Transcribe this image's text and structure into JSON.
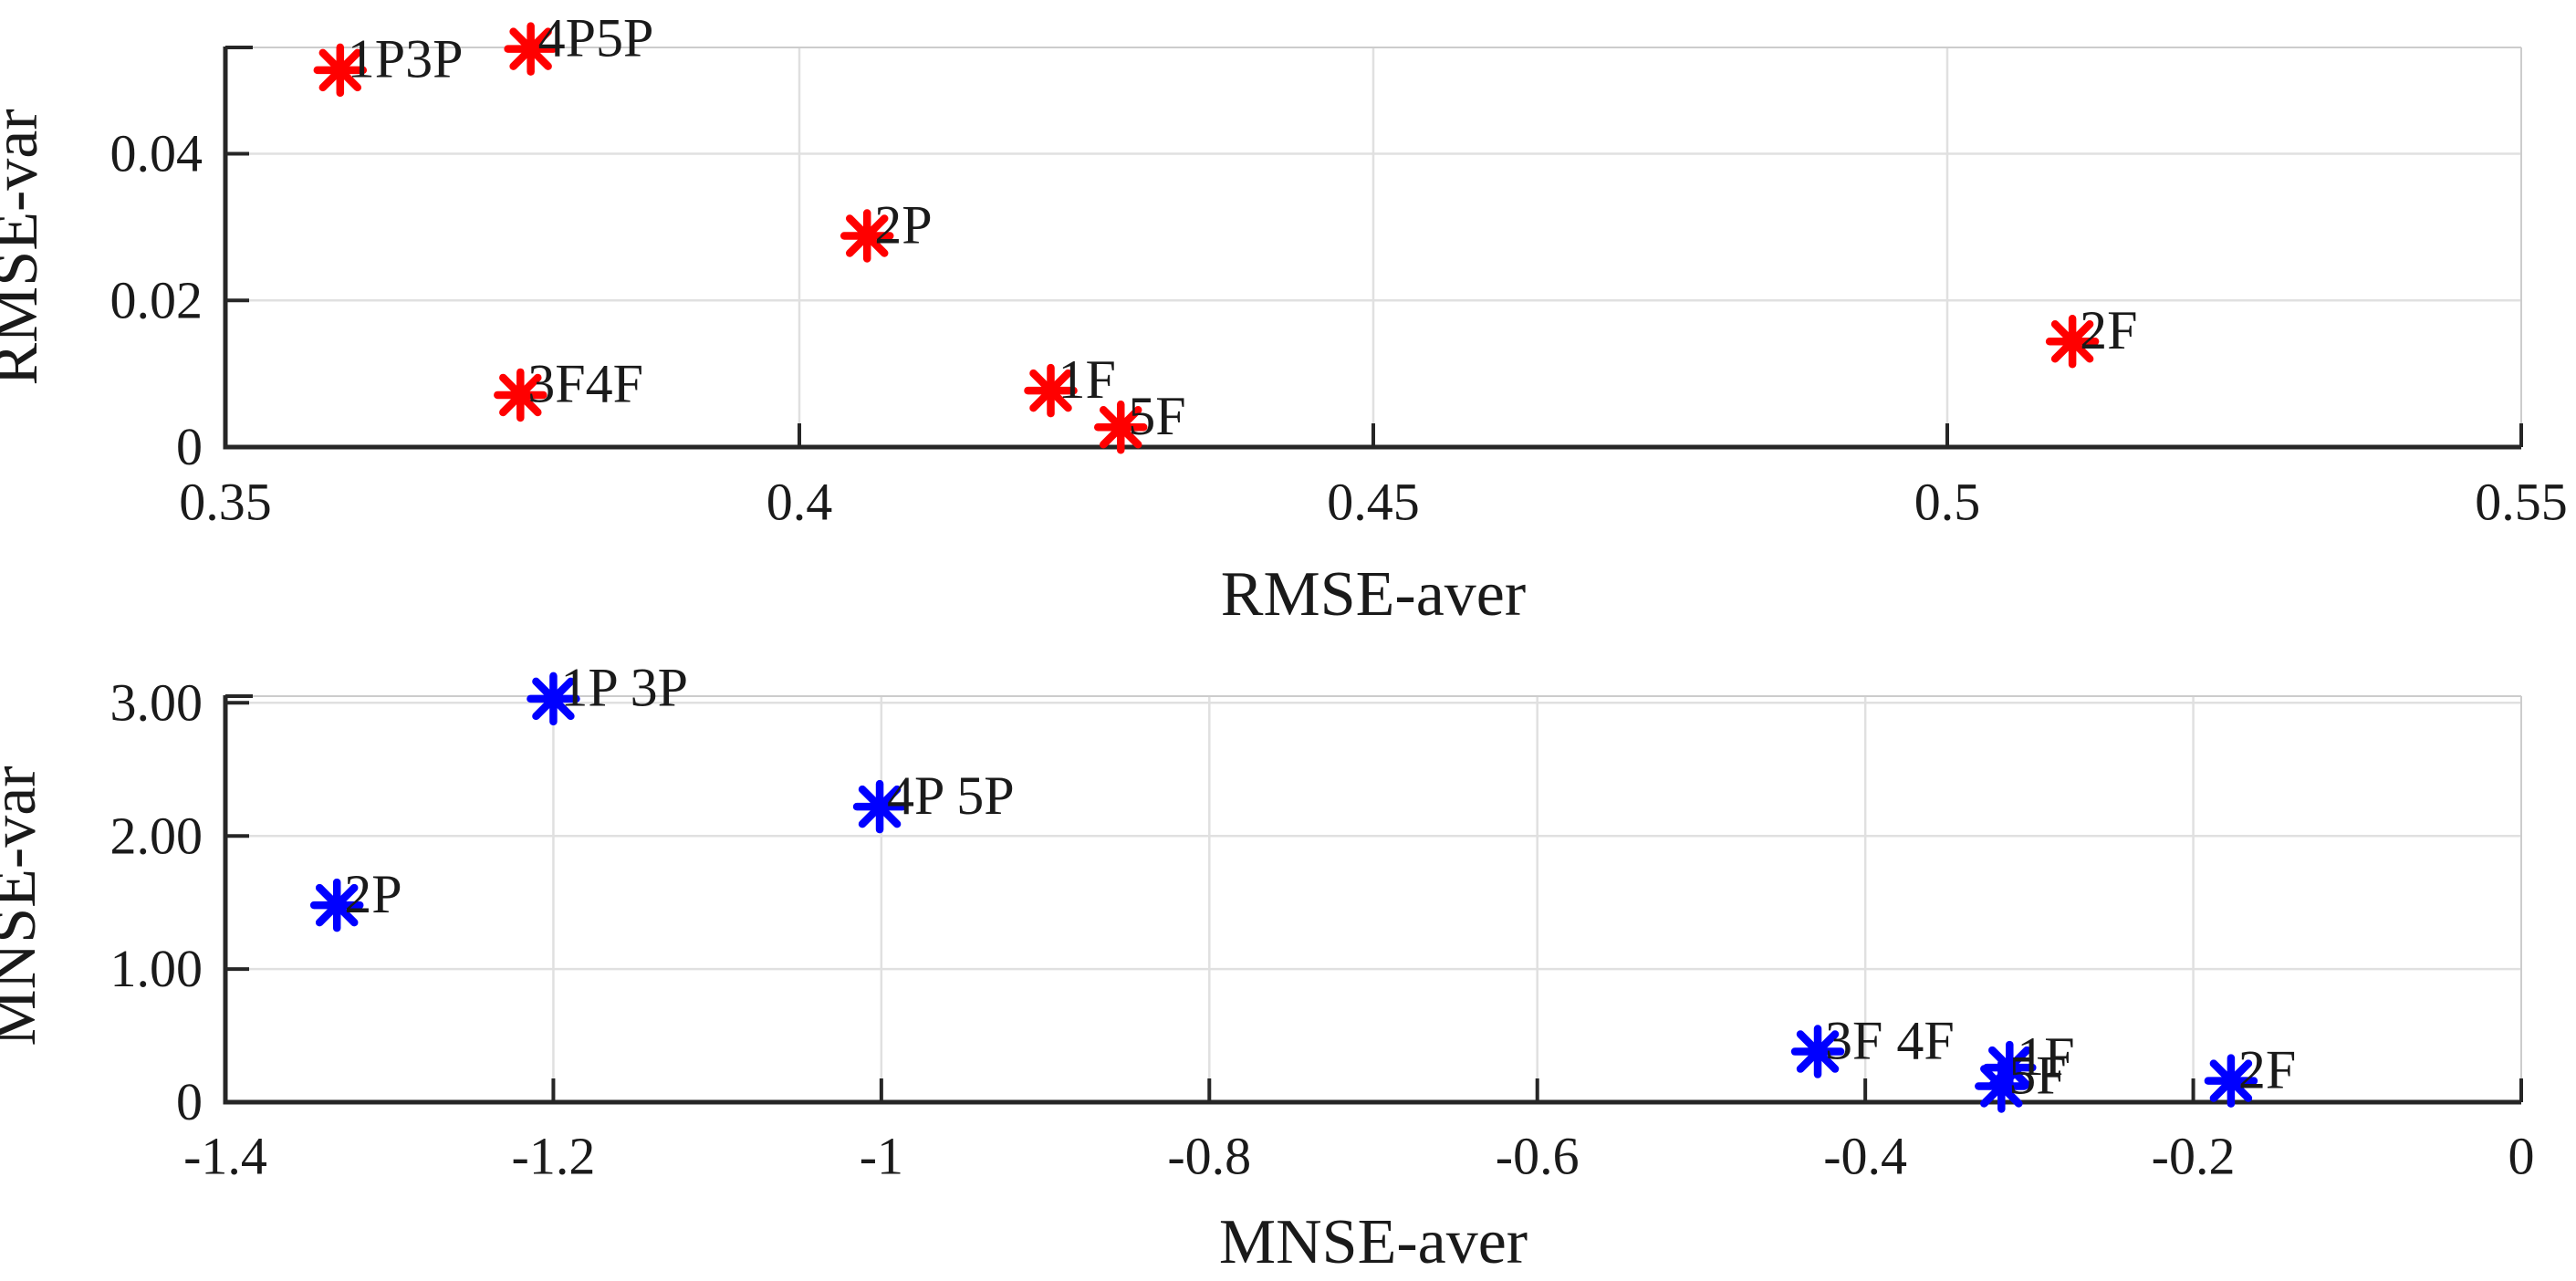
{
  "figure": {
    "background": "#ffffff",
    "description": "Two stacked scatter plots comparing estimator variants (P and F groups)"
  },
  "style": {
    "grid_color": "#e0e0e0",
    "frame_color": "#cccccc",
    "spine_color": "#262626",
    "tick_color": "#262626",
    "text_color": "#1a1a1a",
    "top_marker_color": "#ff0000",
    "bottom_marker_color": "#0000ff",
    "marker_shape": "asterisk"
  },
  "chart_data": [
    {
      "type": "scatter",
      "title": "",
      "xlabel": "RMSE-aver",
      "ylabel": "RMSE-var",
      "xlim": [
        0.35,
        0.55
      ],
      "ylim": [
        0,
        0.0545
      ],
      "grid": true,
      "legend_position": "none",
      "marker": {
        "shape": "asterisk",
        "color": "#ff0000"
      },
      "xticks": {
        "values": [
          0.35,
          0.4,
          0.45,
          0.5,
          0.55
        ],
        "labels": [
          "0.35",
          "0.4",
          "0.45",
          "0.5",
          "0.55"
        ]
      },
      "yticks": {
        "values": [
          0,
          0.02,
          0.04
        ],
        "labels": [
          "0",
          "0.02",
          "0.04"
        ]
      },
      "points": [
        {
          "label": "1P3P",
          "x": 0.36,
          "y": 0.0514
        },
        {
          "label": "4P5P",
          "x": 0.3766,
          "y": 0.0543
        },
        {
          "label": "2P",
          "x": 0.4059,
          "y": 0.0288
        },
        {
          "label": "3F4F",
          "x": 0.3757,
          "y": 0.0071
        },
        {
          "label": "1F",
          "x": 0.4219,
          "y": 0.0077
        },
        {
          "label": "5F",
          "x": 0.428,
          "y": 0.0027
        },
        {
          "label": "2F",
          "x": 0.5109,
          "y": 0.0144
        }
      ]
    },
    {
      "type": "scatter",
      "title": "",
      "xlabel": "MNSE-aver",
      "ylabel": "MNSE-var",
      "xlim": [
        -1.4,
        0
      ],
      "ylim": [
        0,
        3.05
      ],
      "grid": true,
      "legend_position": "none",
      "marker": {
        "shape": "asterisk",
        "color": "#0000ff"
      },
      "xticks": {
        "values": [
          -1.4,
          -1.2,
          -1,
          -0.8,
          -0.6,
          -0.4,
          -0.2,
          0
        ],
        "labels": [
          "-1.4",
          "-1.2",
          "-1",
          "-0.8",
          "-0.6",
          "-0.4",
          "-0.2",
          "0"
        ]
      },
      "yticks": {
        "values": [
          0,
          1,
          2,
          3
        ],
        "labels": [
          "0",
          "1.00",
          "2.00",
          "3.00"
        ]
      },
      "points": [
        {
          "label": "1P 3P",
          "x": -1.2,
          "y": 3.03
        },
        {
          "label": "4P 5P",
          "x": -1.001,
          "y": 2.22
        },
        {
          "label": "2P",
          "x": -1.332,
          "y": 1.48
        },
        {
          "label": "3F 4F",
          "x": -0.429,
          "y": 0.38
        },
        {
          "label": "1F",
          "x": -0.312,
          "y": 0.26
        },
        {
          "label": "5F",
          "x": -0.317,
          "y": 0.12
        },
        {
          "label": "2F",
          "x": -0.177,
          "y": 0.16
        }
      ]
    }
  ]
}
